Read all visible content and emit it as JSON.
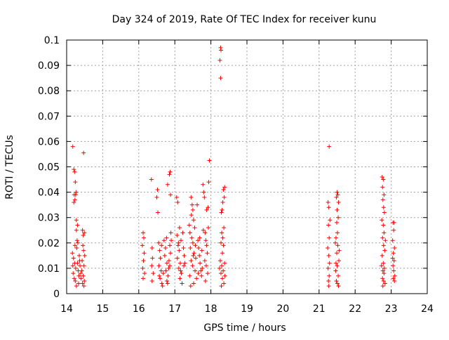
{
  "chart_data": {
    "type": "scatter",
    "title": "Day 324 of 2019, Rate Of TEC Index for receiver kunu",
    "xlabel": "GPS time / hours",
    "ylabel": "ROTI / TECUs",
    "xlim": [
      14,
      24
    ],
    "ylim": [
      0,
      0.1
    ],
    "xticks": [
      "14",
      "15",
      "16",
      "17",
      "18",
      "19",
      "20",
      "21",
      "22",
      "23",
      "24"
    ],
    "yticks": [
      "0",
      "0.01",
      "0.02",
      "0.03",
      "0.04",
      "0.05",
      "0.06",
      "0.07",
      "0.08",
      "0.09",
      "0.1"
    ],
    "grid": true,
    "marker": "+",
    "color": "#ff0000",
    "series": [
      {
        "points": [
          [
            14.17,
            0.058
          ],
          [
            14.2,
            0.049
          ],
          [
            14.22,
            0.048
          ],
          [
            14.24,
            0.044
          ],
          [
            14.21,
            0.039
          ],
          [
            14.25,
            0.039
          ],
          [
            14.23,
            0.037
          ],
          [
            14.2,
            0.036
          ],
          [
            14.26,
            0.04
          ],
          [
            14.27,
            0.029
          ],
          [
            14.3,
            0.027
          ],
          [
            14.27,
            0.025
          ],
          [
            14.47,
            0.0555
          ],
          [
            14.44,
            0.025
          ],
          [
            14.46,
            0.023
          ],
          [
            14.49,
            0.024
          ],
          [
            14.45,
            0.019
          ],
          [
            14.47,
            0.017
          ],
          [
            14.5,
            0.015
          ],
          [
            14.43,
            0.013
          ],
          [
            14.48,
            0.011
          ],
          [
            14.42,
            0.009
          ],
          [
            14.46,
            0.007
          ],
          [
            14.49,
            0.005
          ],
          [
            14.44,
            0.004
          ],
          [
            14.48,
            0.003
          ],
          [
            14.16,
            0.016
          ],
          [
            14.19,
            0.014
          ],
          [
            14.22,
            0.012
          ],
          [
            14.25,
            0.01
          ],
          [
            14.18,
            0.008
          ],
          [
            14.21,
            0.006
          ],
          [
            14.24,
            0.005
          ],
          [
            14.27,
            0.003
          ],
          [
            14.3,
            0.012
          ],
          [
            14.32,
            0.009
          ],
          [
            14.34,
            0.007
          ],
          [
            14.28,
            0.018
          ],
          [
            14.31,
            0.02
          ],
          [
            14.35,
            0.015
          ],
          [
            14.37,
            0.011
          ],
          [
            14.39,
            0.008
          ],
          [
            14.33,
            0.004
          ],
          [
            14.36,
            0.013
          ],
          [
            14.29,
            0.021
          ],
          [
            14.23,
            0.019
          ],
          [
            14.17,
            0.011
          ],
          [
            14.4,
            0.006
          ],
          [
            16.12,
            0.024
          ],
          [
            16.14,
            0.022
          ],
          [
            16.1,
            0.019
          ],
          [
            16.15,
            0.016
          ],
          [
            16.13,
            0.013
          ],
          [
            16.11,
            0.01
          ],
          [
            16.16,
            0.008
          ],
          [
            16.12,
            0.006
          ],
          [
            16.35,
            0.045
          ],
          [
            16.37,
            0.018
          ],
          [
            16.38,
            0.014
          ],
          [
            16.36,
            0.011
          ],
          [
            16.4,
            0.008
          ],
          [
            16.37,
            0.005
          ],
          [
            16.52,
            0.041
          ],
          [
            16.5,
            0.038
          ],
          [
            16.53,
            0.032
          ],
          [
            16.55,
            0.02
          ],
          [
            16.58,
            0.017
          ],
          [
            16.6,
            0.014
          ],
          [
            16.56,
            0.011
          ],
          [
            16.62,
            0.009
          ],
          [
            16.59,
            0.006
          ],
          [
            16.64,
            0.004
          ],
          [
            16.66,
            0.003
          ],
          [
            16.7,
            0.021
          ],
          [
            16.74,
            0.018
          ],
          [
            16.72,
            0.015
          ],
          [
            16.78,
            0.012
          ],
          [
            16.75,
            0.009
          ],
          [
            16.81,
            0.007
          ],
          [
            16.78,
            0.005
          ],
          [
            16.84,
            0.013
          ],
          [
            16.86,
            0.019
          ],
          [
            16.88,
            0.016
          ],
          [
            16.8,
            0.004
          ],
          [
            16.77,
            0.022
          ],
          [
            16.83,
            0.01
          ],
          [
            16.68,
            0.008
          ],
          [
            16.87,
            0.048
          ],
          [
            16.85,
            0.047
          ],
          [
            16.8,
            0.043
          ],
          [
            16.88,
            0.039
          ],
          [
            16.89,
            0.024
          ],
          [
            16.9,
            0.021
          ],
          [
            16.86,
            0.011
          ],
          [
            16.63,
            0.019
          ],
          [
            16.57,
            0.007
          ],
          [
            17.05,
            0.038
          ],
          [
            17.08,
            0.036
          ],
          [
            17.06,
            0.023
          ],
          [
            17.1,
            0.02
          ],
          [
            17.12,
            0.017
          ],
          [
            17.07,
            0.014
          ],
          [
            17.15,
            0.012
          ],
          [
            17.11,
            0.01
          ],
          [
            17.18,
            0.008
          ],
          [
            17.14,
            0.006
          ],
          [
            17.2,
            0.004
          ],
          [
            17.22,
            0.024
          ],
          [
            17.24,
            0.018
          ],
          [
            17.26,
            0.015
          ],
          [
            17.28,
            0.012
          ],
          [
            17.17,
            0.021
          ],
          [
            17.13,
            0.026
          ],
          [
            17.09,
            0.019
          ],
          [
            17.16,
            0.009
          ],
          [
            17.25,
            0.011
          ],
          [
            17.45,
            0.038
          ],
          [
            17.48,
            0.035
          ],
          [
            17.5,
            0.033
          ],
          [
            17.46,
            0.031
          ],
          [
            17.52,
            0.029
          ],
          [
            17.4,
            0.027
          ],
          [
            17.42,
            0.024
          ],
          [
            17.55,
            0.026
          ],
          [
            17.47,
            0.022
          ],
          [
            17.5,
            0.02
          ],
          [
            17.43,
            0.018
          ],
          [
            17.53,
            0.016
          ],
          [
            17.58,
            0.014
          ],
          [
            17.45,
            0.013
          ],
          [
            17.49,
            0.011
          ],
          [
            17.56,
            0.009
          ],
          [
            17.41,
            0.007
          ],
          [
            17.6,
            0.006
          ],
          [
            17.52,
            0.004
          ],
          [
            17.44,
            0.003
          ],
          [
            17.62,
            0.035
          ],
          [
            17.64,
            0.021
          ],
          [
            17.66,
            0.018
          ],
          [
            17.68,
            0.015
          ],
          [
            17.7,
            0.012
          ],
          [
            17.72,
            0.009
          ],
          [
            17.74,
            0.007
          ],
          [
            17.76,
            0.01
          ],
          [
            17.78,
            0.043
          ],
          [
            17.8,
            0.04
          ],
          [
            17.82,
            0.038
          ],
          [
            17.84,
            0.024
          ],
          [
            17.86,
            0.021
          ],
          [
            17.88,
            0.019
          ],
          [
            17.9,
            0.016
          ],
          [
            17.83,
            0.013
          ],
          [
            17.87,
            0.011
          ],
          [
            17.92,
            0.034
          ],
          [
            17.96,
            0.0525
          ],
          [
            17.94,
            0.044
          ],
          [
            17.91,
            0.008
          ],
          [
            17.85,
            0.005
          ],
          [
            17.75,
            0.017
          ],
          [
            17.65,
            0.008
          ],
          [
            17.57,
            0.019
          ],
          [
            17.51,
            0.015
          ],
          [
            17.69,
            0.022
          ],
          [
            17.79,
            0.025
          ],
          [
            17.93,
            0.026
          ],
          [
            17.88,
            0.033
          ],
          [
            18.27,
            0.097
          ],
          [
            18.28,
            0.096
          ],
          [
            18.25,
            0.092
          ],
          [
            18.27,
            0.085
          ],
          [
            18.38,
            0.042
          ],
          [
            18.35,
            0.041
          ],
          [
            18.37,
            0.038
          ],
          [
            18.33,
            0.036
          ],
          [
            18.31,
            0.033
          ],
          [
            18.29,
            0.032
          ],
          [
            18.36,
            0.026
          ],
          [
            18.3,
            0.024
          ],
          [
            18.33,
            0.022
          ],
          [
            18.28,
            0.02
          ],
          [
            18.35,
            0.019
          ],
          [
            18.32,
            0.016
          ],
          [
            18.26,
            0.013
          ],
          [
            18.3,
            0.011
          ],
          [
            18.34,
            0.009
          ],
          [
            18.28,
            0.008
          ],
          [
            18.32,
            0.006
          ],
          [
            18.36,
            0.004
          ],
          [
            18.29,
            0.003
          ],
          [
            18.38,
            0.012
          ],
          [
            18.24,
            0.01
          ],
          [
            18.39,
            0.007
          ],
          [
            21.28,
            0.058
          ],
          [
            21.25,
            0.036
          ],
          [
            21.27,
            0.034
          ],
          [
            21.3,
            0.029
          ],
          [
            21.26,
            0.027
          ],
          [
            21.28,
            0.022
          ],
          [
            21.24,
            0.018
          ],
          [
            21.27,
            0.015
          ],
          [
            21.29,
            0.012
          ],
          [
            21.25,
            0.01
          ],
          [
            21.28,
            0.007
          ],
          [
            21.26,
            0.005
          ],
          [
            21.27,
            0.003
          ],
          [
            21.5,
            0.04
          ],
          [
            21.52,
            0.039
          ],
          [
            21.48,
            0.038
          ],
          [
            21.54,
            0.036
          ],
          [
            21.5,
            0.033
          ],
          [
            21.53,
            0.03
          ],
          [
            21.49,
            0.028
          ],
          [
            21.51,
            0.024
          ],
          [
            21.47,
            0.022
          ],
          [
            21.52,
            0.019
          ],
          [
            21.49,
            0.016
          ],
          [
            21.55,
            0.013
          ],
          [
            21.5,
            0.011
          ],
          [
            21.46,
            0.009
          ],
          [
            21.53,
            0.007
          ],
          [
            21.48,
            0.005
          ],
          [
            21.51,
            0.004
          ],
          [
            21.54,
            0.003
          ],
          [
            21.56,
            0.017
          ],
          [
            21.45,
            0.02
          ],
          [
            21.47,
            0.012
          ],
          [
            22.75,
            0.046
          ],
          [
            22.78,
            0.045
          ],
          [
            22.76,
            0.042
          ],
          [
            22.8,
            0.039
          ],
          [
            22.77,
            0.037
          ],
          [
            22.79,
            0.034
          ],
          [
            22.81,
            0.032
          ],
          [
            22.74,
            0.029
          ],
          [
            22.78,
            0.027
          ],
          [
            22.8,
            0.024
          ],
          [
            22.76,
            0.022
          ],
          [
            22.79,
            0.019
          ],
          [
            22.82,
            0.017
          ],
          [
            22.75,
            0.015
          ],
          [
            22.78,
            0.012
          ],
          [
            22.81,
            0.01
          ],
          [
            22.77,
            0.009
          ],
          [
            22.8,
            0.008
          ],
          [
            22.76,
            0.006
          ],
          [
            22.79,
            0.005
          ],
          [
            22.83,
            0.004
          ],
          [
            22.77,
            0.003
          ],
          [
            22.84,
            0.021
          ],
          [
            22.73,
            0.011
          ],
          [
            23.05,
            0.028
          ],
          [
            23.08,
            0.028
          ],
          [
            23.07,
            0.025
          ],
          [
            23.04,
            0.021
          ],
          [
            23.09,
            0.018
          ],
          [
            23.06,
            0.016
          ],
          [
            23.08,
            0.013
          ],
          [
            23.05,
            0.011
          ],
          [
            23.07,
            0.009
          ],
          [
            23.1,
            0.007
          ],
          [
            23.06,
            0.006
          ],
          [
            23.09,
            0.005
          ],
          [
            23.04,
            0.014
          ]
        ]
      }
    ]
  }
}
